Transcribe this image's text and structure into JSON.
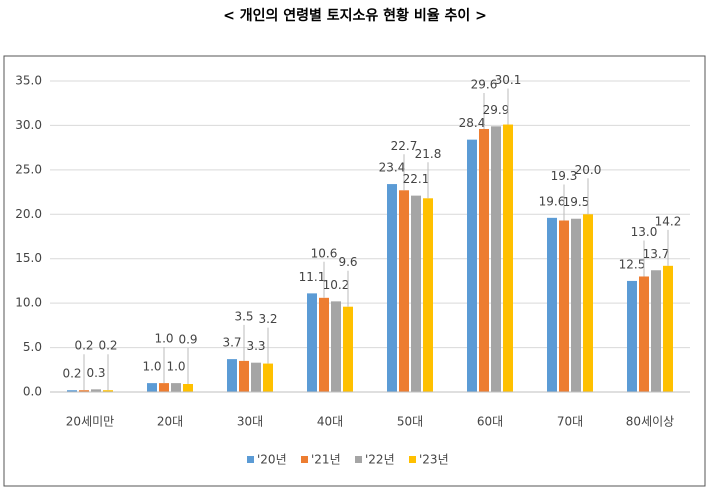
{
  "chart_data": {
    "type": "bar",
    "title": "< 개인의 연령별 토지소유 현황 비율 추이 >",
    "categories": [
      "20세미만",
      "20대",
      "30대",
      "40대",
      "50대",
      "60대",
      "70대",
      "80세이상"
    ],
    "series": [
      {
        "name": "'20년",
        "color": "#5b9bd5",
        "values": [
          0.2,
          1.0,
          3.7,
          11.1,
          23.4,
          28.4,
          19.6,
          12.5
        ],
        "value_labels": [
          "0.2",
          "1.0",
          "3.7",
          "11.1",
          "23.4",
          "28.4",
          "19.6",
          "12.5"
        ]
      },
      {
        "name": "'21년",
        "color": "#ed7d31",
        "values": [
          0.2,
          1.0,
          3.5,
          10.6,
          22.7,
          29.6,
          19.3,
          13.0
        ],
        "value_labels": [
          "0.2",
          "1.0",
          "3.5",
          "10.6",
          "22.7",
          "29.6",
          "19.3",
          "13.0"
        ]
      },
      {
        "name": "'22년",
        "color": "#a5a5a5",
        "values": [
          0.3,
          1.0,
          3.3,
          10.2,
          22.1,
          29.9,
          19.5,
          13.7
        ],
        "value_labels": [
          "0.3",
          "1.0",
          "3.3",
          "10.2",
          "22.1",
          "29.9",
          "19.5",
          "13.7"
        ]
      },
      {
        "name": "'23년",
        "color": "#ffc000",
        "values": [
          0.2,
          0.9,
          3.2,
          9.6,
          21.8,
          30.1,
          20.0,
          14.2
        ],
        "value_labels": [
          "0.2",
          "0.9",
          "3.2",
          "9.6",
          "21.8",
          "30.1",
          "20.0",
          "14.2"
        ]
      }
    ],
    "ylim": [
      0,
      35
    ],
    "yticks": [
      {
        "value": 0,
        "label": "0.0"
      },
      {
        "value": 5,
        "label": "5.0"
      },
      {
        "value": 10,
        "label": "10.0"
      },
      {
        "value": 15,
        "label": "15.0"
      },
      {
        "value": 20,
        "label": "20.0"
      },
      {
        "value": 25,
        "label": "25.0"
      },
      {
        "value": 30,
        "label": "30.0"
      },
      {
        "value": 35,
        "label": "35.0"
      }
    ],
    "grid": true,
    "legend": "bottom"
  }
}
